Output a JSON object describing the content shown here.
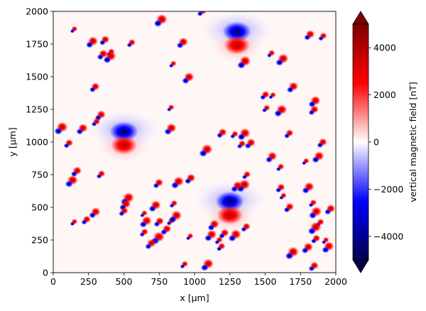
{
  "chart_data": {
    "type": "heatmap",
    "title": "",
    "xlabel": "x [µm]",
    "ylabel": "y [µm]",
    "xlim": [
      0,
      2000
    ],
    "ylim": [
      0,
      2000
    ],
    "x_ticks": [
      0,
      250,
      500,
      750,
      1000,
      1250,
      1500,
      1750,
      2000
    ],
    "y_ticks": [
      0,
      250,
      500,
      750,
      1000,
      1250,
      1500,
      1750,
      2000
    ],
    "colorbar": {
      "label": "vertical magnetic field [nT]",
      "range": [
        -5000,
        5000
      ],
      "ticks": [
        -4000,
        -2000,
        0,
        2000,
        4000
      ],
      "tick_labels": [
        "−4000",
        "−2000",
        "0",
        "2000",
        "4000"
      ],
      "colormap": "seismic",
      "extend": "both",
      "colors": {
        "low": "#00004c",
        "neg": "#0000ff",
        "zero": "#ffffff",
        "pos": "#ff0000",
        "high": "#800000"
      }
    },
    "large_dipoles": [
      {
        "x": 1300,
        "y": 1790,
        "strength": 4200
      },
      {
        "x": 500,
        "y": 1025,
        "strength": 4500
      },
      {
        "x": 1250,
        "y": 490,
        "strength": 4500
      }
    ],
    "small_dipoles": [
      {
        "x": 140,
        "y": 1855
      },
      {
        "x": 265,
        "y": 1755
      },
      {
        "x": 355,
        "y": 1770
      },
      {
        "x": 400,
        "y": 1680
      },
      {
        "x": 390,
        "y": 1640
      },
      {
        "x": 340,
        "y": 1660
      },
      {
        "x": 545,
        "y": 1750
      },
      {
        "x": 750,
        "y": 1920
      },
      {
        "x": 905,
        "y": 1750
      },
      {
        "x": 1045,
        "y": 1990
      },
      {
        "x": 840,
        "y": 1590
      },
      {
        "x": 945,
        "y": 1480
      },
      {
        "x": 285,
        "y": 1410
      },
      {
        "x": 1535,
        "y": 1670
      },
      {
        "x": 1610,
        "y": 1620
      },
      {
        "x": 1805,
        "y": 1810
      },
      {
        "x": 1900,
        "y": 1800
      },
      {
        "x": 1340,
        "y": 1600
      },
      {
        "x": 1685,
        "y": 1410
      },
      {
        "x": 1490,
        "y": 1350
      },
      {
        "x": 1545,
        "y": 1350
      },
      {
        "x": 1840,
        "y": 1300
      },
      {
        "x": 1835,
        "y": 1235
      },
      {
        "x": 1500,
        "y": 1250
      },
      {
        "x": 1600,
        "y": 1230
      },
      {
        "x": 325,
        "y": 1195
      },
      {
        "x": 295,
        "y": 1145
      },
      {
        "x": 45,
        "y": 1095
      },
      {
        "x": 195,
        "y": 1090
      },
      {
        "x": 100,
        "y": 980
      },
      {
        "x": 825,
        "y": 1255
      },
      {
        "x": 820,
        "y": 1090
      },
      {
        "x": 1185,
        "y": 1060
      },
      {
        "x": 1275,
        "y": 1050
      },
      {
        "x": 1340,
        "y": 1050
      },
      {
        "x": 1385,
        "y": 980
      },
      {
        "x": 1325,
        "y": 975
      },
      {
        "x": 1070,
        "y": 925
      },
      {
        "x": 1535,
        "y": 875
      },
      {
        "x": 1660,
        "y": 1055
      },
      {
        "x": 1780,
        "y": 845
      },
      {
        "x": 1865,
        "y": 875
      },
      {
        "x": 1895,
        "y": 985
      },
      {
        "x": 1600,
        "y": 800
      },
      {
        "x": 120,
        "y": 690
      },
      {
        "x": 155,
        "y": 765
      },
      {
        "x": 330,
        "y": 745
      },
      {
        "x": 515,
        "y": 555
      },
      {
        "x": 500,
        "y": 510
      },
      {
        "x": 490,
        "y": 460
      },
      {
        "x": 635,
        "y": 445
      },
      {
        "x": 710,
        "y": 500
      },
      {
        "x": 735,
        "y": 675
      },
      {
        "x": 845,
        "y": 520
      },
      {
        "x": 870,
        "y": 680
      },
      {
        "x": 960,
        "y": 710
      },
      {
        "x": 1360,
        "y": 740
      },
      {
        "x": 1335,
        "y": 655
      },
      {
        "x": 1290,
        "y": 650
      },
      {
        "x": 1600,
        "y": 640
      },
      {
        "x": 1620,
        "y": 580
      },
      {
        "x": 1795,
        "y": 640
      },
      {
        "x": 1660,
        "y": 490
      },
      {
        "x": 1830,
        "y": 525
      },
      {
        "x": 1845,
        "y": 450
      },
      {
        "x": 1950,
        "y": 475
      },
      {
        "x": 1880,
        "y": 375
      },
      {
        "x": 1840,
        "y": 330
      },
      {
        "x": 285,
        "y": 450
      },
      {
        "x": 225,
        "y": 395
      },
      {
        "x": 140,
        "y": 380
      },
      {
        "x": 645,
        "y": 380
      },
      {
        "x": 740,
        "y": 380
      },
      {
        "x": 825,
        "y": 385
      },
      {
        "x": 855,
        "y": 420
      },
      {
        "x": 790,
        "y": 320
      },
      {
        "x": 635,
        "y": 300
      },
      {
        "x": 730,
        "y": 255
      },
      {
        "x": 1125,
        "y": 355
      },
      {
        "x": 1355,
        "y": 340
      },
      {
        "x": 960,
        "y": 270
      },
      {
        "x": 1105,
        "y": 275
      },
      {
        "x": 1200,
        "y": 290
      },
      {
        "x": 1165,
        "y": 240
      },
      {
        "x": 1275,
        "y": 275
      },
      {
        "x": 680,
        "y": 210
      },
      {
        "x": 1180,
        "y": 190
      },
      {
        "x": 1680,
        "y": 140
      },
      {
        "x": 1790,
        "y": 180
      },
      {
        "x": 1850,
        "y": 250
      },
      {
        "x": 1920,
        "y": 240
      },
      {
        "x": 1935,
        "y": 185
      },
      {
        "x": 1835,
        "y": 40
      },
      {
        "x": 920,
        "y": 55
      },
      {
        "x": 1080,
        "y": 50
      }
    ]
  }
}
